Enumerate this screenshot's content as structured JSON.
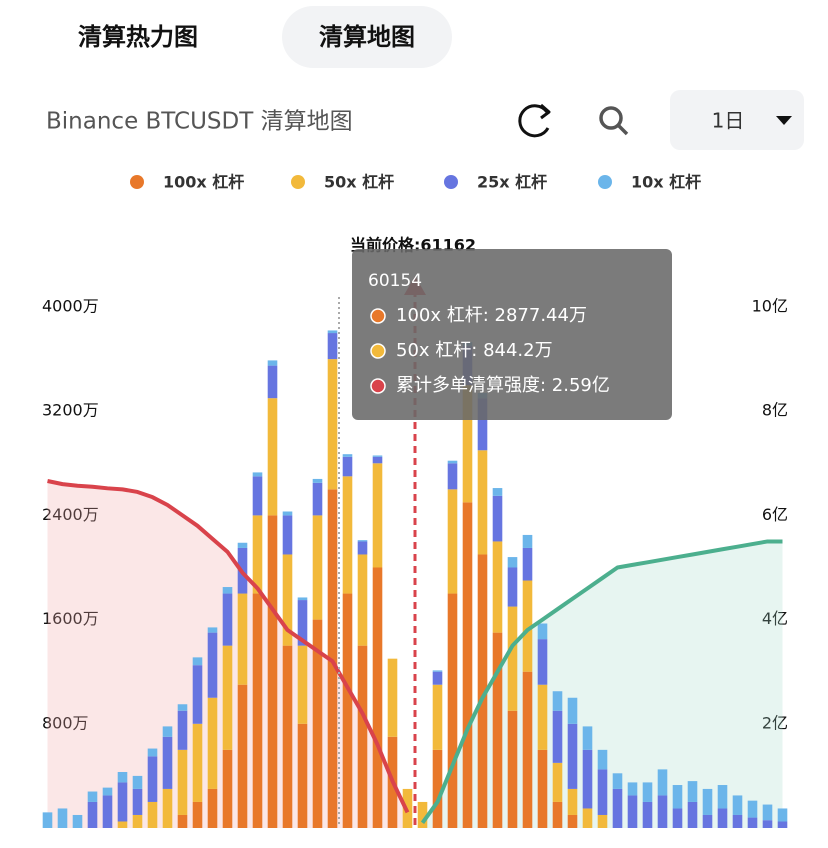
{
  "header": {
    "tabs": [
      "清算热力图",
      "清算地图"
    ],
    "title": "Binance BTCUSDT 清算地图",
    "period": "1日"
  },
  "chart_data": {
    "type": "bar",
    "stacked": true,
    "annotation": "当前价格:61162",
    "categories": [
      null,
      null,
      null,
      null,
      null,
      null,
      null,
      null,
      null,
      null,
      null,
      null,
      null,
      null,
      null,
      null,
      null,
      null,
      null,
      null,
      null,
      null,
      null,
      null,
      null,
      null,
      null,
      null,
      null,
      null,
      null,
      null,
      null,
      null,
      null,
      null,
      null,
      null,
      null,
      null,
      null,
      null,
      null,
      null,
      null,
      null,
      null,
      null,
      null,
      null
    ],
    "ylim": [
      0,
      4000
    ],
    "yticks": [
      {
        "value": 800,
        "label": "800万"
      },
      {
        "value": 1600,
        "label": "1600万"
      },
      {
        "value": 2400,
        "label": "2400万"
      },
      {
        "value": 3200,
        "label": "3200万"
      },
      {
        "value": 4000,
        "label": "4000万"
      }
    ],
    "y2lim": [
      0,
      10
    ],
    "y2ticks": [
      {
        "value": 2,
        "label": "2亿"
      },
      {
        "value": 4,
        "label": "4亿"
      },
      {
        "value": 6,
        "label": "6亿"
      },
      {
        "value": 8,
        "label": "8亿"
      },
      {
        "value": 10,
        "label": "10亿"
      }
    ],
    "grid": false,
    "series": [
      {
        "name": "100x 杠杆",
        "color": "#e8782a",
        "values": [
          0,
          0,
          0,
          0,
          0,
          0,
          0,
          0,
          0,
          100,
          200,
          300,
          600,
          1100,
          1800,
          2400,
          1400,
          800,
          1600,
          2600,
          1800,
          1400,
          2000,
          700,
          0,
          0,
          600,
          1800,
          2500,
          2100,
          1500,
          900,
          1200,
          600,
          200,
          100,
          0,
          0,
          0,
          0,
          0,
          0,
          0,
          0,
          0,
          0,
          0,
          0,
          0,
          0
        ]
      },
      {
        "name": "50x 杠杆",
        "color": "#f2b93b",
        "values": [
          0,
          0,
          0,
          0,
          0,
          50,
          100,
          200,
          300,
          500,
          600,
          700,
          800,
          700,
          600,
          900,
          700,
          600,
          800,
          1000,
          900,
          700,
          800,
          600,
          300,
          200,
          500,
          800,
          900,
          800,
          700,
          800,
          700,
          500,
          300,
          200,
          150,
          100,
          0,
          0,
          0,
          0,
          0,
          0,
          0,
          0,
          0,
          0,
          0,
          0
        ]
      },
      {
        "name": "25x 杠杆",
        "color": "#6675e0",
        "values": [
          0,
          0,
          0,
          200,
          250,
          300,
          200,
          350,
          400,
          300,
          450,
          500,
          400,
          350,
          300,
          250,
          300,
          350,
          250,
          200,
          150,
          100,
          50,
          0,
          0,
          0,
          100,
          200,
          300,
          400,
          350,
          300,
          250,
          350,
          400,
          500,
          450,
          350,
          300,
          250,
          200,
          250,
          150,
          200,
          100,
          150,
          100,
          80,
          60,
          50
        ]
      },
      {
        "name": "10x 杠杆",
        "color": "#6bb5ea",
        "values": [
          120,
          150,
          100,
          80,
          60,
          80,
          100,
          60,
          80,
          50,
          60,
          40,
          50,
          40,
          30,
          40,
          30,
          20,
          30,
          20,
          20,
          10,
          10,
          0,
          0,
          0,
          10,
          20,
          30,
          40,
          60,
          80,
          100,
          120,
          150,
          200,
          180,
          150,
          120,
          100,
          150,
          200,
          180,
          160,
          200,
          180,
          150,
          130,
          120,
          100
        ]
      }
    ],
    "lines": [
      {
        "axis": "y2",
        "color": "#d9434b",
        "fill": "rgba(240,170,170,0.28)",
        "values": [
          6.66,
          6.6,
          6.57,
          6.55,
          6.52,
          6.5,
          6.45,
          6.35,
          6.2,
          6.0,
          5.8,
          5.55,
          5.3,
          4.9,
          4.6,
          4.2,
          3.8,
          3.6,
          3.4,
          3.2,
          2.7,
          2.2,
          1.6,
          0.9,
          0.3,
          null,
          null,
          null,
          null,
          null,
          null,
          null,
          null,
          null,
          null,
          null,
          null,
          null,
          null,
          null,
          null,
          null,
          null,
          null,
          null,
          null,
          null,
          null,
          null,
          null
        ]
      },
      {
        "axis": "y2",
        "color": "#4caf8e",
        "fill": "rgba(160,215,200,0.25)",
        "values": [
          null,
          null,
          null,
          null,
          null,
          null,
          null,
          null,
          null,
          null,
          null,
          null,
          null,
          null,
          null,
          null,
          null,
          null,
          null,
          null,
          null,
          null,
          null,
          null,
          null,
          0.1,
          0.5,
          1.2,
          1.9,
          2.5,
          3.0,
          3.5,
          3.8,
          4.0,
          4.2,
          4.4,
          4.6,
          4.8,
          5.0,
          5.05,
          5.1,
          5.15,
          5.2,
          5.25,
          5.3,
          5.35,
          5.4,
          5.45,
          5.5,
          5.5
        ]
      }
    ],
    "tooltip": {
      "title": "60154",
      "items": [
        {
          "color": "#e8782a",
          "text": "100x 杠杆: 2877.44万"
        },
        {
          "color": "#f2b93b",
          "text": "50x 杠杆: 844.2万"
        },
        {
          "color": "#d9434b",
          "text": "累计多单清算强度: 2.59亿"
        }
      ]
    }
  }
}
